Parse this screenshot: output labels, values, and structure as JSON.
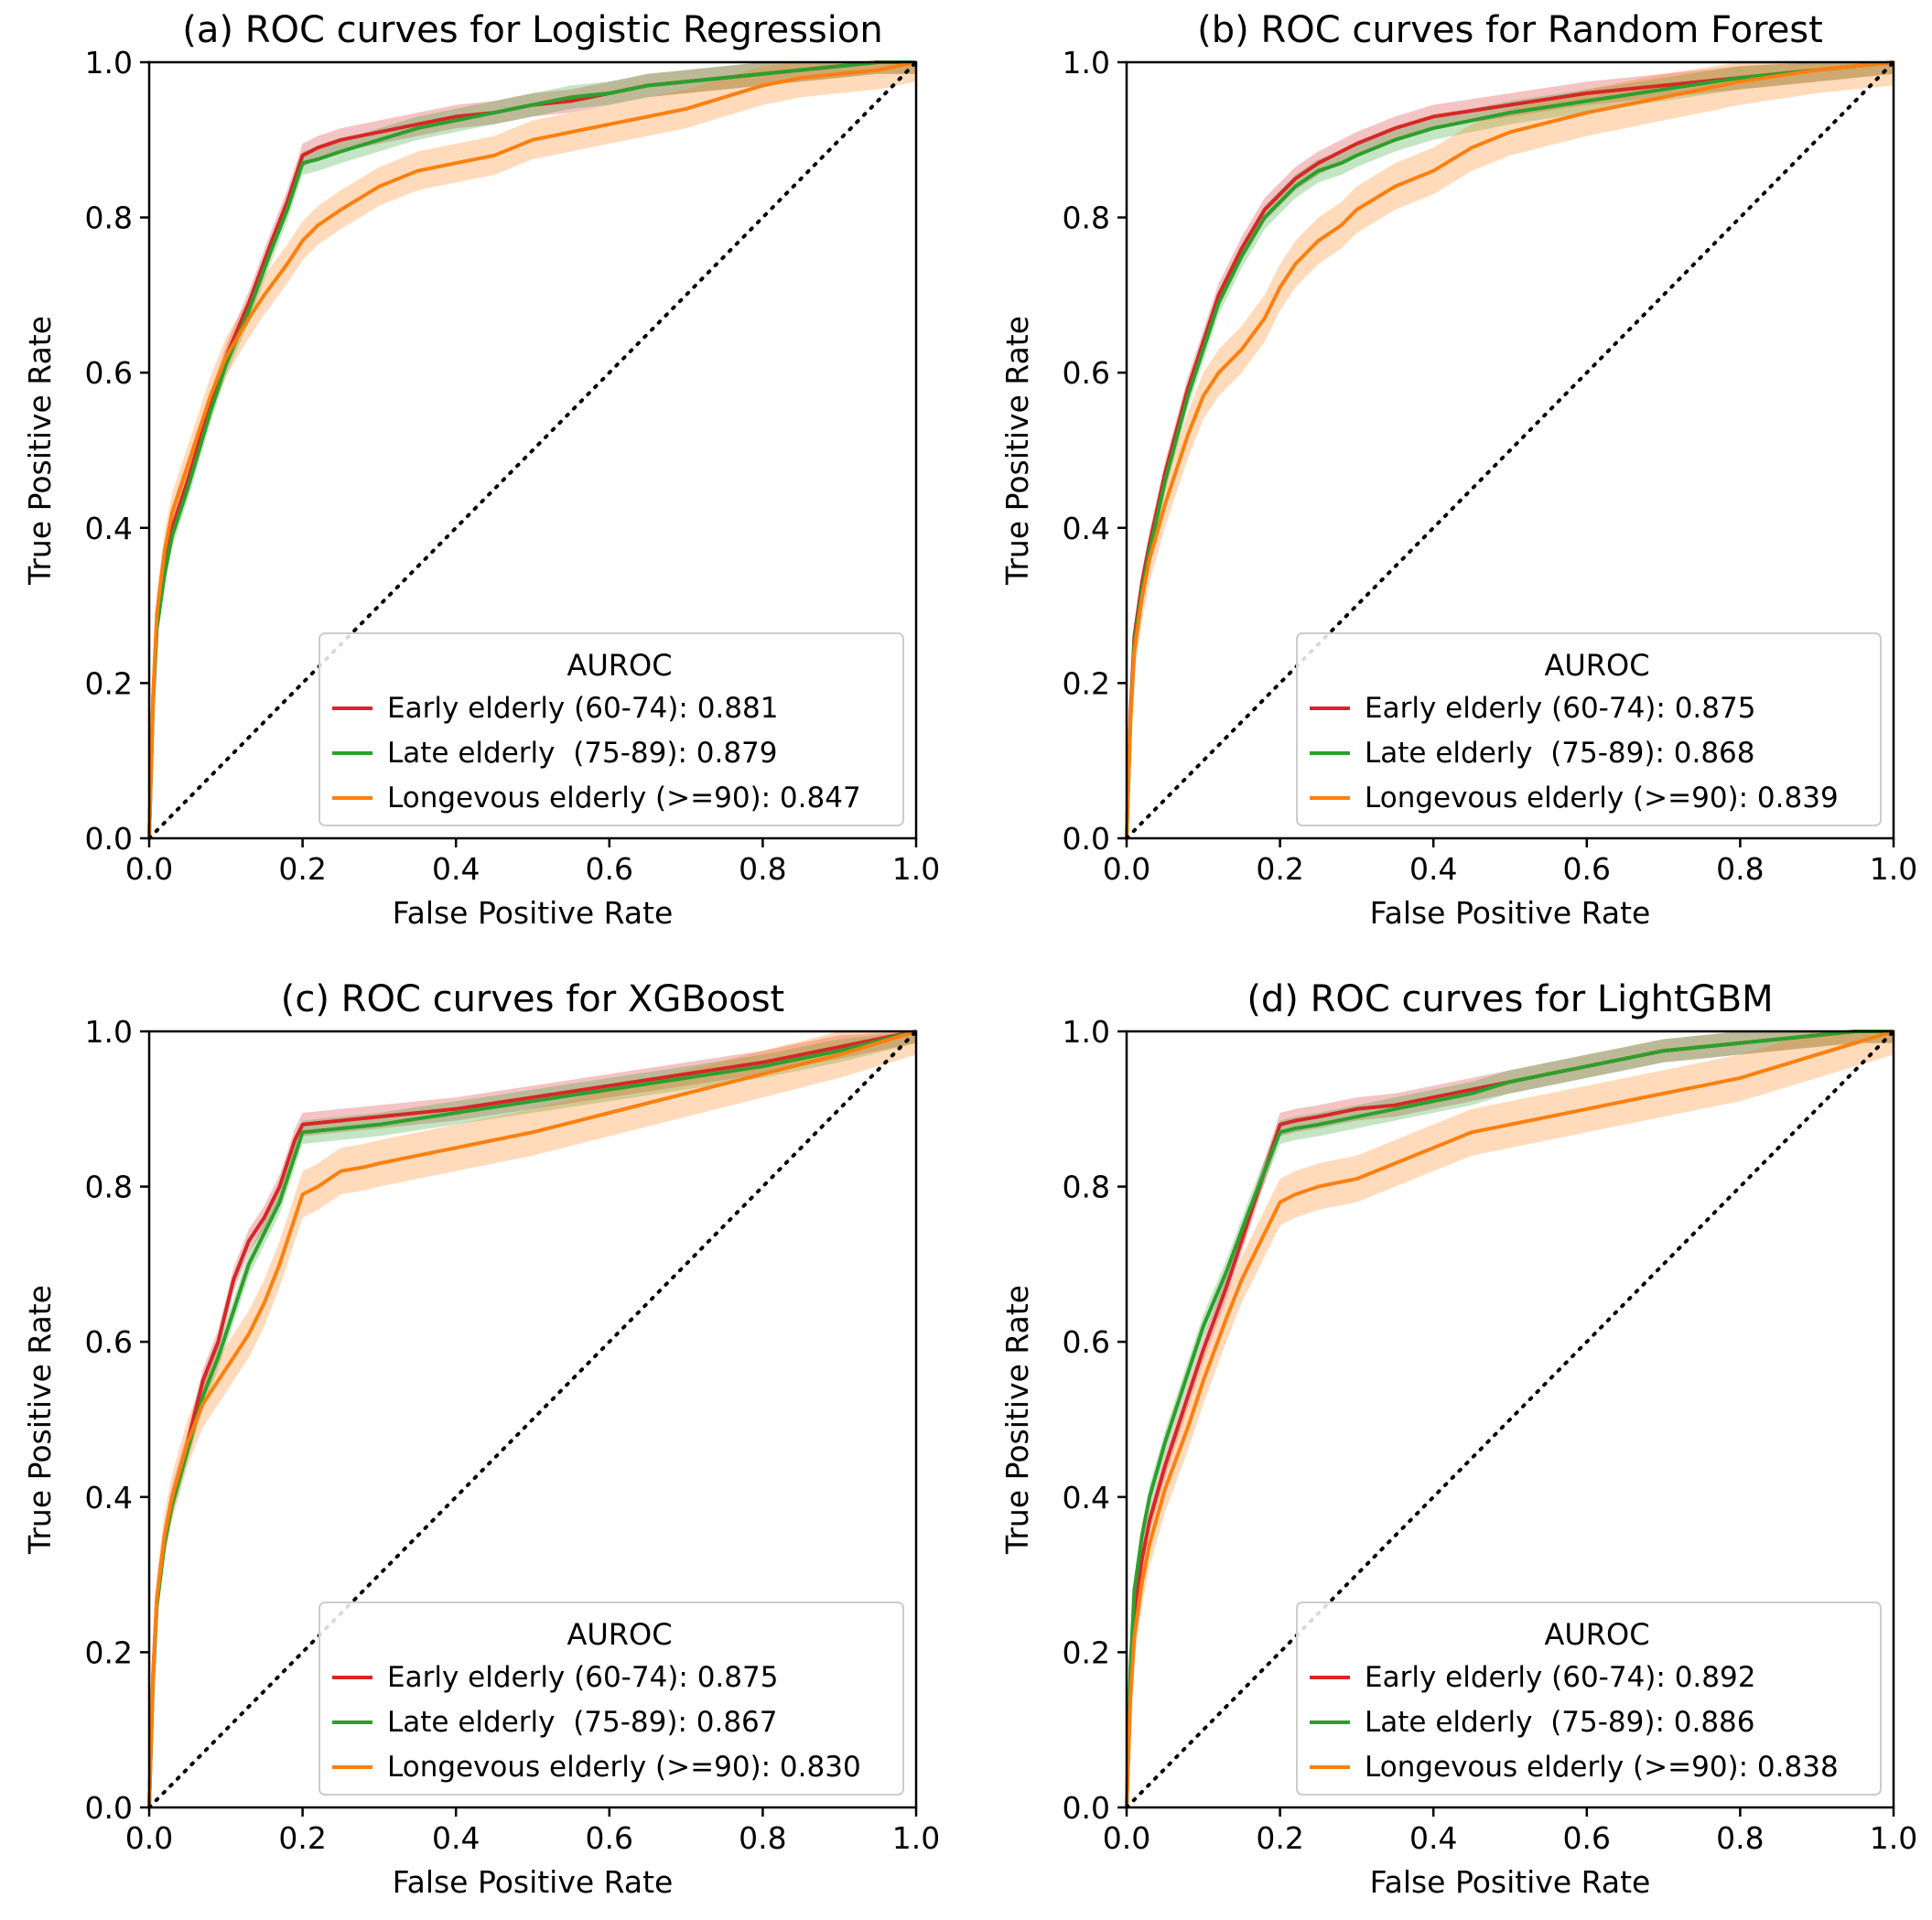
{
  "chart_data": [
    {
      "type": "line",
      "title": "(a) ROC curves for Logistic Regression",
      "xlabel": "False Positive Rate",
      "ylabel": "True Positive Rate",
      "xlim": [
        0,
        1
      ],
      "ylim": [
        0,
        1
      ],
      "xticks": [
        "0.0",
        "0.2",
        "0.4",
        "0.6",
        "0.8",
        "1.0"
      ],
      "yticks": [
        "0.0",
        "0.2",
        "0.4",
        "0.6",
        "0.8",
        "1.0"
      ],
      "legend": {
        "title": "AUROC",
        "position": "lower-right"
      },
      "series": [
        {
          "name": "Early elderly (60-74): 0.881",
          "color": "#d62728",
          "band": 0.015,
          "x": [
            0,
            0.005,
            0.01,
            0.02,
            0.03,
            0.05,
            0.08,
            0.1,
            0.13,
            0.16,
            0.18,
            0.2,
            0.22,
            0.25,
            0.3,
            0.35,
            0.4,
            0.45,
            0.5,
            0.55,
            0.6,
            0.65,
            0.7,
            0.75,
            0.8,
            0.85,
            0.9,
            0.95,
            1.0
          ],
          "y": [
            0,
            0.18,
            0.28,
            0.35,
            0.4,
            0.46,
            0.56,
            0.62,
            0.69,
            0.77,
            0.82,
            0.88,
            0.89,
            0.9,
            0.91,
            0.92,
            0.93,
            0.935,
            0.945,
            0.95,
            0.96,
            0.97,
            0.975,
            0.98,
            0.985,
            0.99,
            0.995,
            1.0,
            1.0
          ]
        },
        {
          "name": "Late elderly  (75-89): 0.879",
          "color": "#2ca02c",
          "band": 0.015,
          "x": [
            0,
            0.005,
            0.01,
            0.02,
            0.03,
            0.05,
            0.08,
            0.1,
            0.13,
            0.16,
            0.18,
            0.2,
            0.22,
            0.25,
            0.3,
            0.35,
            0.4,
            0.45,
            0.5,
            0.55,
            0.6,
            0.65,
            0.7,
            0.75,
            0.8,
            0.85,
            0.9,
            0.95,
            1.0
          ],
          "y": [
            0,
            0.17,
            0.27,
            0.34,
            0.39,
            0.45,
            0.55,
            0.61,
            0.68,
            0.76,
            0.81,
            0.87,
            0.875,
            0.885,
            0.9,
            0.915,
            0.925,
            0.935,
            0.945,
            0.955,
            0.96,
            0.97,
            0.975,
            0.98,
            0.985,
            0.99,
            0.995,
            1.0,
            1.0
          ]
        },
        {
          "name": "Longevous elderly (>=90): 0.847",
          "color": "#ff7f0e",
          "band": 0.025,
          "x": [
            0,
            0.005,
            0.01,
            0.02,
            0.03,
            0.05,
            0.08,
            0.1,
            0.13,
            0.15,
            0.18,
            0.2,
            0.22,
            0.25,
            0.3,
            0.35,
            0.4,
            0.45,
            0.5,
            0.55,
            0.6,
            0.65,
            0.7,
            0.75,
            0.8,
            0.85,
            0.9,
            0.95,
            1.0
          ],
          "y": [
            0,
            0.18,
            0.29,
            0.37,
            0.42,
            0.48,
            0.57,
            0.62,
            0.67,
            0.7,
            0.74,
            0.77,
            0.79,
            0.81,
            0.84,
            0.86,
            0.87,
            0.88,
            0.9,
            0.91,
            0.92,
            0.93,
            0.94,
            0.955,
            0.97,
            0.98,
            0.985,
            0.99,
            1.0
          ]
        }
      ]
    },
    {
      "type": "line",
      "title": "(b) ROC curves for Random Forest",
      "xlabel": "False Positive Rate",
      "ylabel": "True Positive Rate",
      "xlim": [
        0,
        1
      ],
      "ylim": [
        0,
        1
      ],
      "xticks": [
        "0.0",
        "0.2",
        "0.4",
        "0.6",
        "0.8",
        "1.0"
      ],
      "yticks": [
        "0.0",
        "0.2",
        "0.4",
        "0.6",
        "0.8",
        "1.0"
      ],
      "legend": {
        "title": "AUROC",
        "position": "lower-right"
      },
      "series": [
        {
          "name": "Early elderly (60-74): 0.875",
          "color": "#d62728",
          "band": 0.015,
          "x": [
            0,
            0.005,
            0.01,
            0.02,
            0.03,
            0.05,
            0.08,
            0.1,
            0.12,
            0.15,
            0.18,
            0.2,
            0.22,
            0.25,
            0.28,
            0.3,
            0.35,
            0.4,
            0.5,
            0.6,
            0.7,
            0.8,
            0.9,
            1.0
          ],
          "y": [
            0,
            0.16,
            0.26,
            0.33,
            0.38,
            0.47,
            0.58,
            0.64,
            0.7,
            0.76,
            0.81,
            0.83,
            0.85,
            0.87,
            0.885,
            0.895,
            0.915,
            0.93,
            0.945,
            0.96,
            0.97,
            0.98,
            0.99,
            1.0
          ]
        },
        {
          "name": "Late elderly  (75-89): 0.868",
          "color": "#2ca02c",
          "band": 0.015,
          "x": [
            0,
            0.005,
            0.01,
            0.02,
            0.03,
            0.05,
            0.08,
            0.1,
            0.12,
            0.15,
            0.18,
            0.2,
            0.22,
            0.25,
            0.28,
            0.3,
            0.35,
            0.4,
            0.5,
            0.6,
            0.7,
            0.8,
            0.9,
            1.0
          ],
          "y": [
            0,
            0.15,
            0.25,
            0.32,
            0.37,
            0.46,
            0.57,
            0.63,
            0.69,
            0.75,
            0.8,
            0.82,
            0.84,
            0.86,
            0.87,
            0.88,
            0.9,
            0.915,
            0.935,
            0.95,
            0.965,
            0.98,
            0.99,
            1.0
          ]
        },
        {
          "name": "Longevous elderly (>=90): 0.839",
          "color": "#ff7f0e",
          "band": 0.03,
          "x": [
            0,
            0.005,
            0.01,
            0.02,
            0.03,
            0.05,
            0.08,
            0.1,
            0.12,
            0.15,
            0.18,
            0.2,
            0.22,
            0.25,
            0.28,
            0.3,
            0.35,
            0.4,
            0.45,
            0.5,
            0.6,
            0.7,
            0.8,
            0.9,
            1.0
          ],
          "y": [
            0,
            0.15,
            0.24,
            0.31,
            0.36,
            0.43,
            0.52,
            0.57,
            0.6,
            0.63,
            0.67,
            0.71,
            0.74,
            0.77,
            0.79,
            0.81,
            0.84,
            0.86,
            0.89,
            0.91,
            0.935,
            0.955,
            0.975,
            0.99,
            1.0
          ]
        }
      ]
    },
    {
      "type": "line",
      "title": "(c) ROC curves for XGBoost",
      "xlabel": "False Positive Rate",
      "ylabel": "True Positive Rate",
      "xlim": [
        0,
        1
      ],
      "ylim": [
        0,
        1
      ],
      "xticks": [
        "0.0",
        "0.2",
        "0.4",
        "0.6",
        "0.8",
        "1.0"
      ],
      "yticks": [
        "0.0",
        "0.2",
        "0.4",
        "0.6",
        "0.8",
        "1.0"
      ],
      "legend": {
        "title": "AUROC",
        "position": "lower-right"
      },
      "series": [
        {
          "name": "Early elderly (60-74): 0.875",
          "color": "#d62728",
          "band": 0.015,
          "x": [
            0,
            0.005,
            0.01,
            0.02,
            0.03,
            0.05,
            0.07,
            0.09,
            0.11,
            0.13,
            0.15,
            0.17,
            0.19,
            0.2,
            0.25,
            0.3,
            0.4,
            0.5,
            0.6,
            0.7,
            0.8,
            0.9,
            1.0
          ],
          "y": [
            0,
            0.17,
            0.27,
            0.35,
            0.4,
            0.47,
            0.55,
            0.6,
            0.68,
            0.73,
            0.76,
            0.8,
            0.86,
            0.88,
            0.885,
            0.89,
            0.9,
            0.915,
            0.93,
            0.945,
            0.96,
            0.98,
            1.0
          ]
        },
        {
          "name": "Late elderly  (75-89): 0.867",
          "color": "#2ca02c",
          "band": 0.015,
          "x": [
            0,
            0.005,
            0.01,
            0.02,
            0.03,
            0.05,
            0.07,
            0.09,
            0.11,
            0.13,
            0.15,
            0.17,
            0.19,
            0.2,
            0.25,
            0.3,
            0.4,
            0.5,
            0.6,
            0.7,
            0.8,
            0.9,
            1.0
          ],
          "y": [
            0,
            0.16,
            0.26,
            0.34,
            0.39,
            0.46,
            0.53,
            0.58,
            0.64,
            0.7,
            0.74,
            0.78,
            0.84,
            0.87,
            0.875,
            0.88,
            0.895,
            0.91,
            0.925,
            0.94,
            0.955,
            0.975,
            1.0
          ]
        },
        {
          "name": "Longevous elderly (>=90): 0.830",
          "color": "#ff7f0e",
          "band": 0.03,
          "x": [
            0,
            0.005,
            0.01,
            0.02,
            0.03,
            0.05,
            0.07,
            0.09,
            0.11,
            0.13,
            0.15,
            0.17,
            0.19,
            0.2,
            0.22,
            0.25,
            0.28,
            0.3,
            0.35,
            0.4,
            0.5,
            0.6,
            0.7,
            0.8,
            0.9,
            1.0
          ],
          "y": [
            0,
            0.17,
            0.27,
            0.35,
            0.4,
            0.47,
            0.52,
            0.55,
            0.58,
            0.61,
            0.65,
            0.7,
            0.76,
            0.79,
            0.8,
            0.82,
            0.825,
            0.83,
            0.84,
            0.85,
            0.87,
            0.895,
            0.92,
            0.945,
            0.97,
            1.0
          ]
        }
      ]
    },
    {
      "type": "line",
      "title": "(d) ROC curves for LightGBM",
      "xlabel": "False Positive Rate",
      "ylabel": "True Positive Rate",
      "xlim": [
        0,
        1
      ],
      "ylim": [
        0,
        1
      ],
      "xticks": [
        "0.0",
        "0.2",
        "0.4",
        "0.6",
        "0.8",
        "1.0"
      ],
      "yticks": [
        "0.0",
        "0.2",
        "0.4",
        "0.6",
        "0.8",
        "1.0"
      ],
      "legend": {
        "title": "AUROC",
        "position": "lower-right"
      },
      "series": [
        {
          "name": "Early elderly (60-74): 0.892",
          "color": "#d62728",
          "band": 0.015,
          "x": [
            0,
            0.005,
            0.01,
            0.02,
            0.03,
            0.05,
            0.08,
            0.1,
            0.13,
            0.16,
            0.18,
            0.2,
            0.22,
            0.25,
            0.3,
            0.35,
            0.4,
            0.45,
            0.5,
            0.55,
            0.6,
            0.65,
            0.7,
            0.75,
            0.8,
            0.85,
            0.9,
            0.95,
            1.0
          ],
          "y": [
            0,
            0.15,
            0.25,
            0.32,
            0.37,
            0.44,
            0.53,
            0.59,
            0.67,
            0.76,
            0.82,
            0.88,
            0.885,
            0.89,
            0.9,
            0.905,
            0.915,
            0.925,
            0.935,
            0.945,
            0.955,
            0.965,
            0.975,
            0.98,
            0.985,
            0.99,
            0.995,
            1.0,
            1.0
          ]
        },
        {
          "name": "Late elderly  (75-89): 0.886",
          "color": "#2ca02c",
          "band": 0.015,
          "x": [
            0,
            0.005,
            0.01,
            0.02,
            0.03,
            0.05,
            0.08,
            0.1,
            0.13,
            0.16,
            0.18,
            0.2,
            0.22,
            0.25,
            0.3,
            0.35,
            0.4,
            0.45,
            0.5,
            0.55,
            0.6,
            0.65,
            0.7,
            0.75,
            0.8,
            0.85,
            0.9,
            0.95,
            1.0
          ],
          "y": [
            0,
            0.18,
            0.28,
            0.35,
            0.4,
            0.47,
            0.56,
            0.62,
            0.69,
            0.77,
            0.82,
            0.87,
            0.875,
            0.88,
            0.89,
            0.9,
            0.91,
            0.92,
            0.935,
            0.945,
            0.955,
            0.965,
            0.975,
            0.98,
            0.985,
            0.99,
            0.995,
            1.0,
            1.0
          ]
        },
        {
          "name": "Longevous elderly (>=90): 0.838",
          "color": "#ff7f0e",
          "band": 0.03,
          "x": [
            0,
            0.005,
            0.01,
            0.02,
            0.03,
            0.05,
            0.08,
            0.1,
            0.13,
            0.15,
            0.18,
            0.2,
            0.22,
            0.25,
            0.3,
            0.35,
            0.4,
            0.45,
            0.5,
            0.55,
            0.6,
            0.65,
            0.7,
            0.75,
            0.8,
            0.85,
            0.9,
            0.95,
            1.0
          ],
          "y": [
            0,
            0.14,
            0.22,
            0.29,
            0.34,
            0.41,
            0.49,
            0.55,
            0.63,
            0.68,
            0.74,
            0.78,
            0.79,
            0.8,
            0.81,
            0.83,
            0.85,
            0.87,
            0.88,
            0.89,
            0.9,
            0.91,
            0.92,
            0.93,
            0.94,
            0.955,
            0.97,
            0.985,
            1.0
          ]
        }
      ]
    }
  ]
}
